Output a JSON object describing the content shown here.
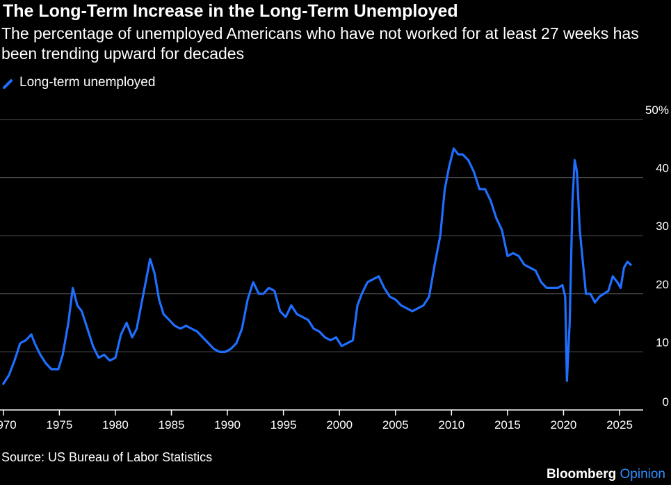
{
  "title": "The Long-Term Increase in the Long-Term Unemployed",
  "subtitle": "The percentage of unemployed Americans who have not worked for at least 27 weeks has been trending upward for decades",
  "source": "Source: US Bureau of Labor Statistics",
  "brand": {
    "name": "Bloomberg",
    "accent": "Opinion"
  },
  "colors": {
    "background": "#000000",
    "series": "#1f6fff",
    "grid": "#555555",
    "accent": "#2d8fff"
  },
  "chart_data": {
    "type": "line",
    "title": "The Long-Term Increase in the Long-Term Unemployed",
    "xlim": [
      1969.7,
      2026.8
    ],
    "ylim": [
      0,
      50
    ],
    "x_ticks": [
      "1970",
      "1975",
      "1980",
      "1985",
      "1990",
      "1995",
      "2000",
      "2005",
      "2010",
      "2015",
      "2020",
      "2025"
    ],
    "y_ticks": [
      "0",
      "10",
      "20",
      "30",
      "40",
      "50%"
    ],
    "grid": true,
    "legend": "top-left",
    "series": [
      {
        "name": "Long-term unemployed",
        "x": [
          1970.0,
          1970.5,
          1971.0,
          1971.5,
          1972.0,
          1972.5,
          1972.8,
          1973.3,
          1973.8,
          1974.3,
          1974.9,
          1975.3,
          1975.8,
          1976.2,
          1976.6,
          1977.0,
          1977.5,
          1978.0,
          1978.5,
          1979.0,
          1979.5,
          1980.0,
          1980.5,
          1981.0,
          1981.5,
          1981.9,
          1982.3,
          1982.7,
          1983.1,
          1983.5,
          1983.9,
          1984.3,
          1984.8,
          1985.3,
          1985.8,
          1986.3,
          1986.8,
          1987.3,
          1987.8,
          1988.3,
          1988.8,
          1989.3,
          1989.8,
          1990.3,
          1990.8,
          1991.3,
          1991.8,
          1992.3,
          1992.8,
          1993.2,
          1993.7,
          1994.2,
          1994.7,
          1995.2,
          1995.7,
          1996.2,
          1996.7,
          1997.2,
          1997.7,
          1998.2,
          1998.7,
          1999.2,
          1999.7,
          2000.2,
          2000.7,
          2001.2,
          2001.6,
          2002.0,
          2002.5,
          2003.0,
          2003.5,
          2004.0,
          2004.5,
          2005.0,
          2005.5,
          2006.0,
          2006.5,
          2007.0,
          2007.5,
          2008.0,
          2008.5,
          2009.0,
          2009.4,
          2009.8,
          2010.2,
          2010.6,
          2011.0,
          2011.5,
          2012.0,
          2012.5,
          2013.0,
          2013.5,
          2014.0,
          2014.5,
          2015.0,
          2015.5,
          2016.0,
          2016.5,
          2017.0,
          2017.5,
          2018.0,
          2018.5,
          2019.0,
          2019.5,
          2019.9,
          2020.15,
          2020.3,
          2020.55,
          2020.8,
          2021.0,
          2021.2,
          2021.45,
          2021.7,
          2022.0,
          2022.4,
          2022.8,
          2023.2,
          2023.6,
          2024.0,
          2024.4,
          2024.8,
          2025.1,
          2025.4,
          2025.7,
          2026.0
        ],
        "y": [
          4.5,
          6.0,
          8.5,
          11.5,
          12.0,
          13.0,
          11.5,
          9.5,
          8.0,
          7.0,
          7.0,
          9.5,
          15.0,
          21.0,
          18.0,
          17.0,
          14.0,
          11.0,
          9.0,
          9.5,
          8.5,
          9.0,
          13.0,
          15.0,
          12.5,
          14.0,
          18.0,
          22.0,
          26.0,
          23.5,
          19.0,
          16.5,
          15.5,
          14.5,
          14.0,
          14.5,
          14.0,
          13.5,
          12.5,
          11.5,
          10.5,
          10.0,
          10.0,
          10.5,
          11.5,
          14.0,
          19.0,
          22.0,
          20.0,
          20.0,
          21.0,
          20.5,
          17.0,
          16.0,
          18.0,
          16.5,
          16.0,
          15.5,
          14.0,
          13.5,
          12.5,
          12.0,
          12.5,
          11.0,
          11.5,
          12.0,
          18.0,
          20.0,
          22.0,
          22.5,
          23.0,
          21.0,
          19.5,
          19.0,
          18.0,
          17.5,
          17.0,
          17.5,
          18.0,
          19.5,
          25.0,
          30.0,
          38.0,
          42.0,
          45.0,
          44.0,
          44.0,
          43.0,
          41.0,
          38.0,
          38.0,
          36.0,
          33.0,
          31.0,
          26.5,
          27.0,
          26.5,
          25.0,
          24.5,
          24.0,
          22.0,
          21.0,
          21.0,
          21.0,
          21.5,
          19.5,
          5.0,
          15.0,
          36.0,
          43.0,
          41.0,
          31.0,
          26.0,
          20.0,
          20.0,
          18.5,
          19.5,
          20.0,
          20.5,
          23.0,
          22.0,
          21.0,
          24.5,
          25.5,
          25.0
        ]
      }
    ]
  }
}
